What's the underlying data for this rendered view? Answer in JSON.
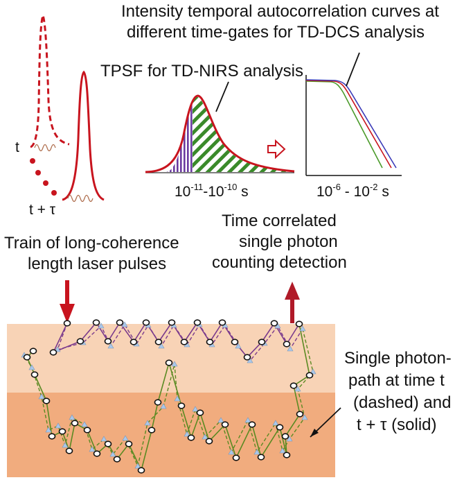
{
  "labels": {
    "tdcs_title_line1": "Intensity temporal autocorrelation curves at",
    "tdcs_title_line2": "different time-gates for TD-DCS analysis",
    "tpsf_title": "TPSF for TD-NIRS analysis",
    "tpsf_axis": {
      "base1": "10",
      "exp1": "-11",
      "sep": "-",
      "base2": "10",
      "exp2": "-10",
      "unit": " s"
    },
    "corr_axis": {
      "base1": "10",
      "exp1": "-6",
      "sep": " - ",
      "base2": "10",
      "exp2": "-2",
      "unit": " s"
    },
    "t_label": "t",
    "t_tau_label": "t + τ",
    "train_line1": "Train of long-coherence",
    "train_line2": "length laser pulses",
    "tcspc_line1": "Time correlated",
    "tcspc_line2": "single photon",
    "tcspc_line3": "counting detection",
    "path_line1": "Single photon-",
    "path_line2": "path at time t",
    "path_line3": "(dashed) and",
    "path_line4": "t + τ (solid)"
  },
  "colors": {
    "pulse_red": "#c8141e",
    "tissue_top": "#f8d3b6",
    "tissue_bottom": "#f1ac7e",
    "path_green": "#5a8a22",
    "path_purple": "#7a3a8c",
    "curve_blue": "#3a3ab8",
    "curve_red": "#c8141e",
    "curve_green": "#4a9a2a",
    "hatch_purple": "#6a3aa0",
    "hatch_green": "#3a8a2a",
    "node_blue": "#aac8ea"
  }
}
